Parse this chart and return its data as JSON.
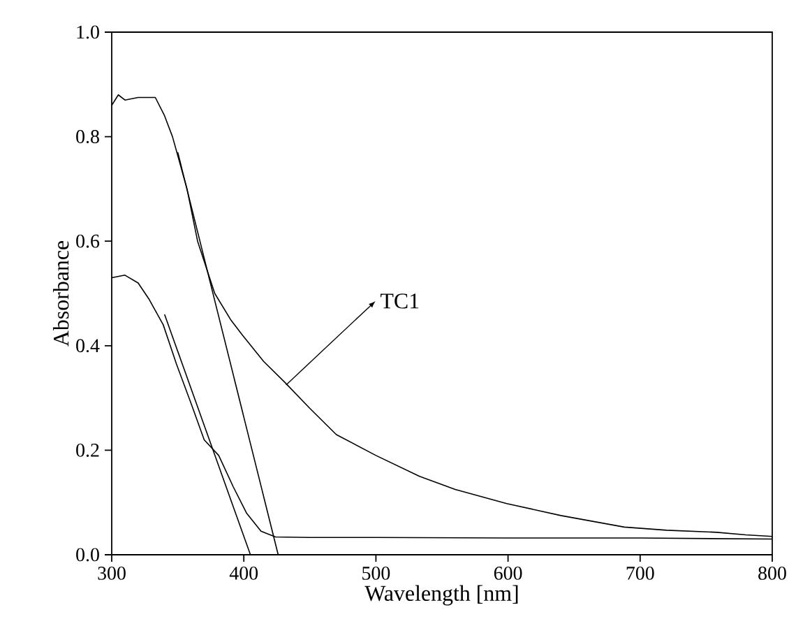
{
  "chart_data": {
    "type": "line",
    "xlabel": "Wavelength [nm]",
    "ylabel": "Absorbance",
    "xlim": [
      300,
      800
    ],
    "ylim": [
      0,
      1.0
    ],
    "xticks": [
      300,
      400,
      500,
      600,
      700,
      800
    ],
    "yticks": [
      {
        "value": 0,
        "label": "0.0"
      },
      {
        "value": 0.2,
        "label": "0.2"
      },
      {
        "value": 0.4,
        "label": "0.4"
      },
      {
        "value": 0.6,
        "label": "0.6"
      },
      {
        "value": 0.8,
        "label": "0.8"
      },
      {
        "value": 1.0,
        "label": "1.0"
      }
    ],
    "series": [
      {
        "color": "#000000",
        "x": [
          300,
          305,
          310,
          320,
          333,
          340,
          346,
          357,
          365,
          378,
          390,
          399,
          415,
          431,
          450,
          470,
          500,
          533,
          560,
          599,
          640,
          688,
          720,
          758,
          780,
          800
        ],
        "values": [
          0.86,
          0.88,
          0.87,
          0.875,
          0.875,
          0.84,
          0.8,
          0.7,
          0.6,
          0.5,
          0.45,
          0.42,
          0.37,
          0.33,
          0.28,
          0.23,
          0.19,
          0.15,
          0.125,
          0.098,
          0.075,
          0.053,
          0.047,
          0.043,
          0.038,
          0.035
        ]
      },
      {
        "color": "#000000",
        "x": [
          300,
          310,
          320,
          328,
          339,
          349,
          360,
          370,
          381,
          392,
          402,
          413,
          424,
          450,
          500,
          600,
          700,
          800
        ],
        "values": [
          0.53,
          0.535,
          0.52,
          0.49,
          0.44,
          0.365,
          0.29,
          0.22,
          0.19,
          0.13,
          0.08,
          0.045,
          0.034,
          0.033,
          0.033,
          0.032,
          0.032,
          0.03
        ]
      },
      {
        "color": "#000000",
        "x": [
          350,
          426
        ],
        "values": [
          0.77,
          0
        ]
      },
      {
        "color": "#000000",
        "x": [
          340,
          405
        ],
        "values": [
          0.46,
          0
        ]
      }
    ],
    "annotations": [
      {
        "text": "TC1",
        "x": 432,
        "y": 0.325
      }
    ]
  }
}
